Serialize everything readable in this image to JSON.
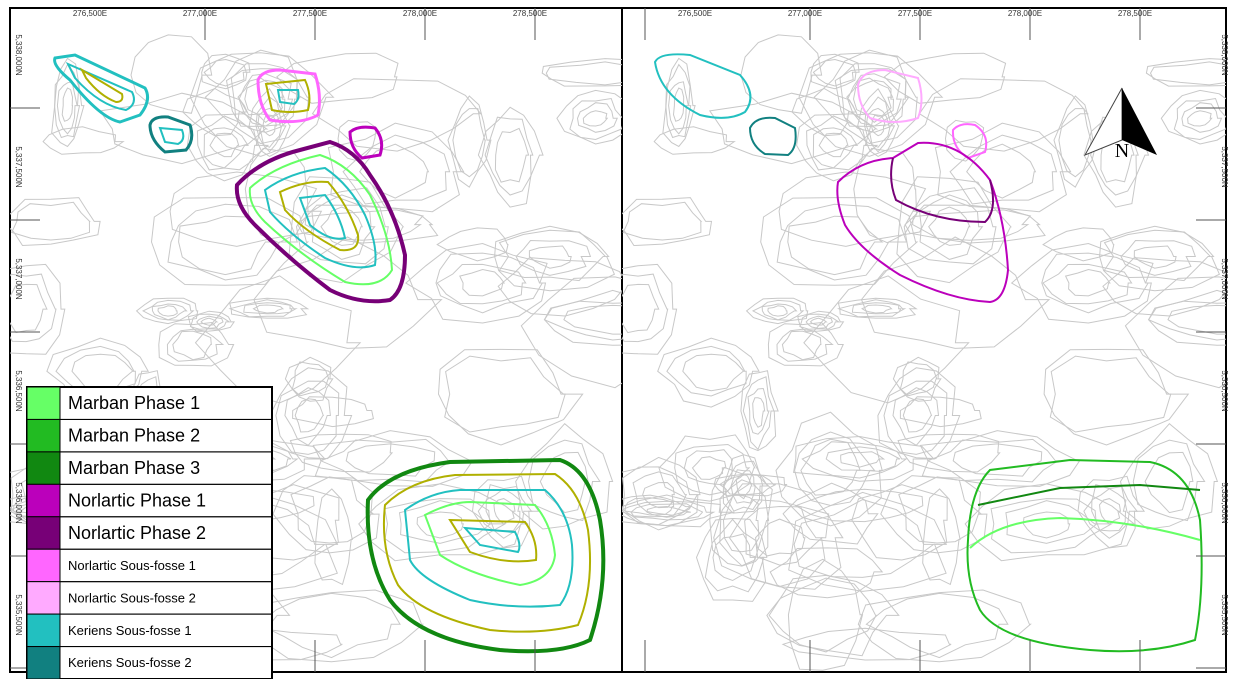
{
  "panels": [
    {
      "x_labels": [
        "276,500E",
        "277,000E",
        "277,500E",
        "278,000E",
        "278,500E"
      ],
      "y_labels": [
        "5,338,000N",
        "5,337,500N",
        "5,337,000N",
        "5,336,500N",
        "5,336,000N",
        "5,335,500N"
      ]
    },
    {
      "x_labels": [
        "276,500E",
        "277,000E",
        "277,500E",
        "278,000E",
        "278,500E"
      ],
      "y_labels": [
        "5,338,000N",
        "5,337,500N",
        "5,337,000N",
        "5,336,500N",
        "5,336,000N",
        "5,335,500N"
      ]
    }
  ],
  "north_label": "N",
  "legend": [
    {
      "label": "Marban Phase 1",
      "color": "#66ff66"
    },
    {
      "label": "Marban Phase 2",
      "color": "#22bb22"
    },
    {
      "label": "Marban Phase 3",
      "color": "#118811"
    },
    {
      "label": "Norlartic Phase 1",
      "color": "#bb00bb"
    },
    {
      "label": "Norlartic Phase 2",
      "color": "#770077"
    },
    {
      "label": "Norlartic Sous-fosse 1",
      "color": "#ff66ff"
    },
    {
      "label": "Norlartic Sous-fosse 2",
      "color": "#ffaaff"
    },
    {
      "label": "Keriens Sous-fosse 1",
      "color": "#22c0c0"
    },
    {
      "label": "Keriens Sous-fosse 2",
      "color": "#118080"
    }
  ]
}
